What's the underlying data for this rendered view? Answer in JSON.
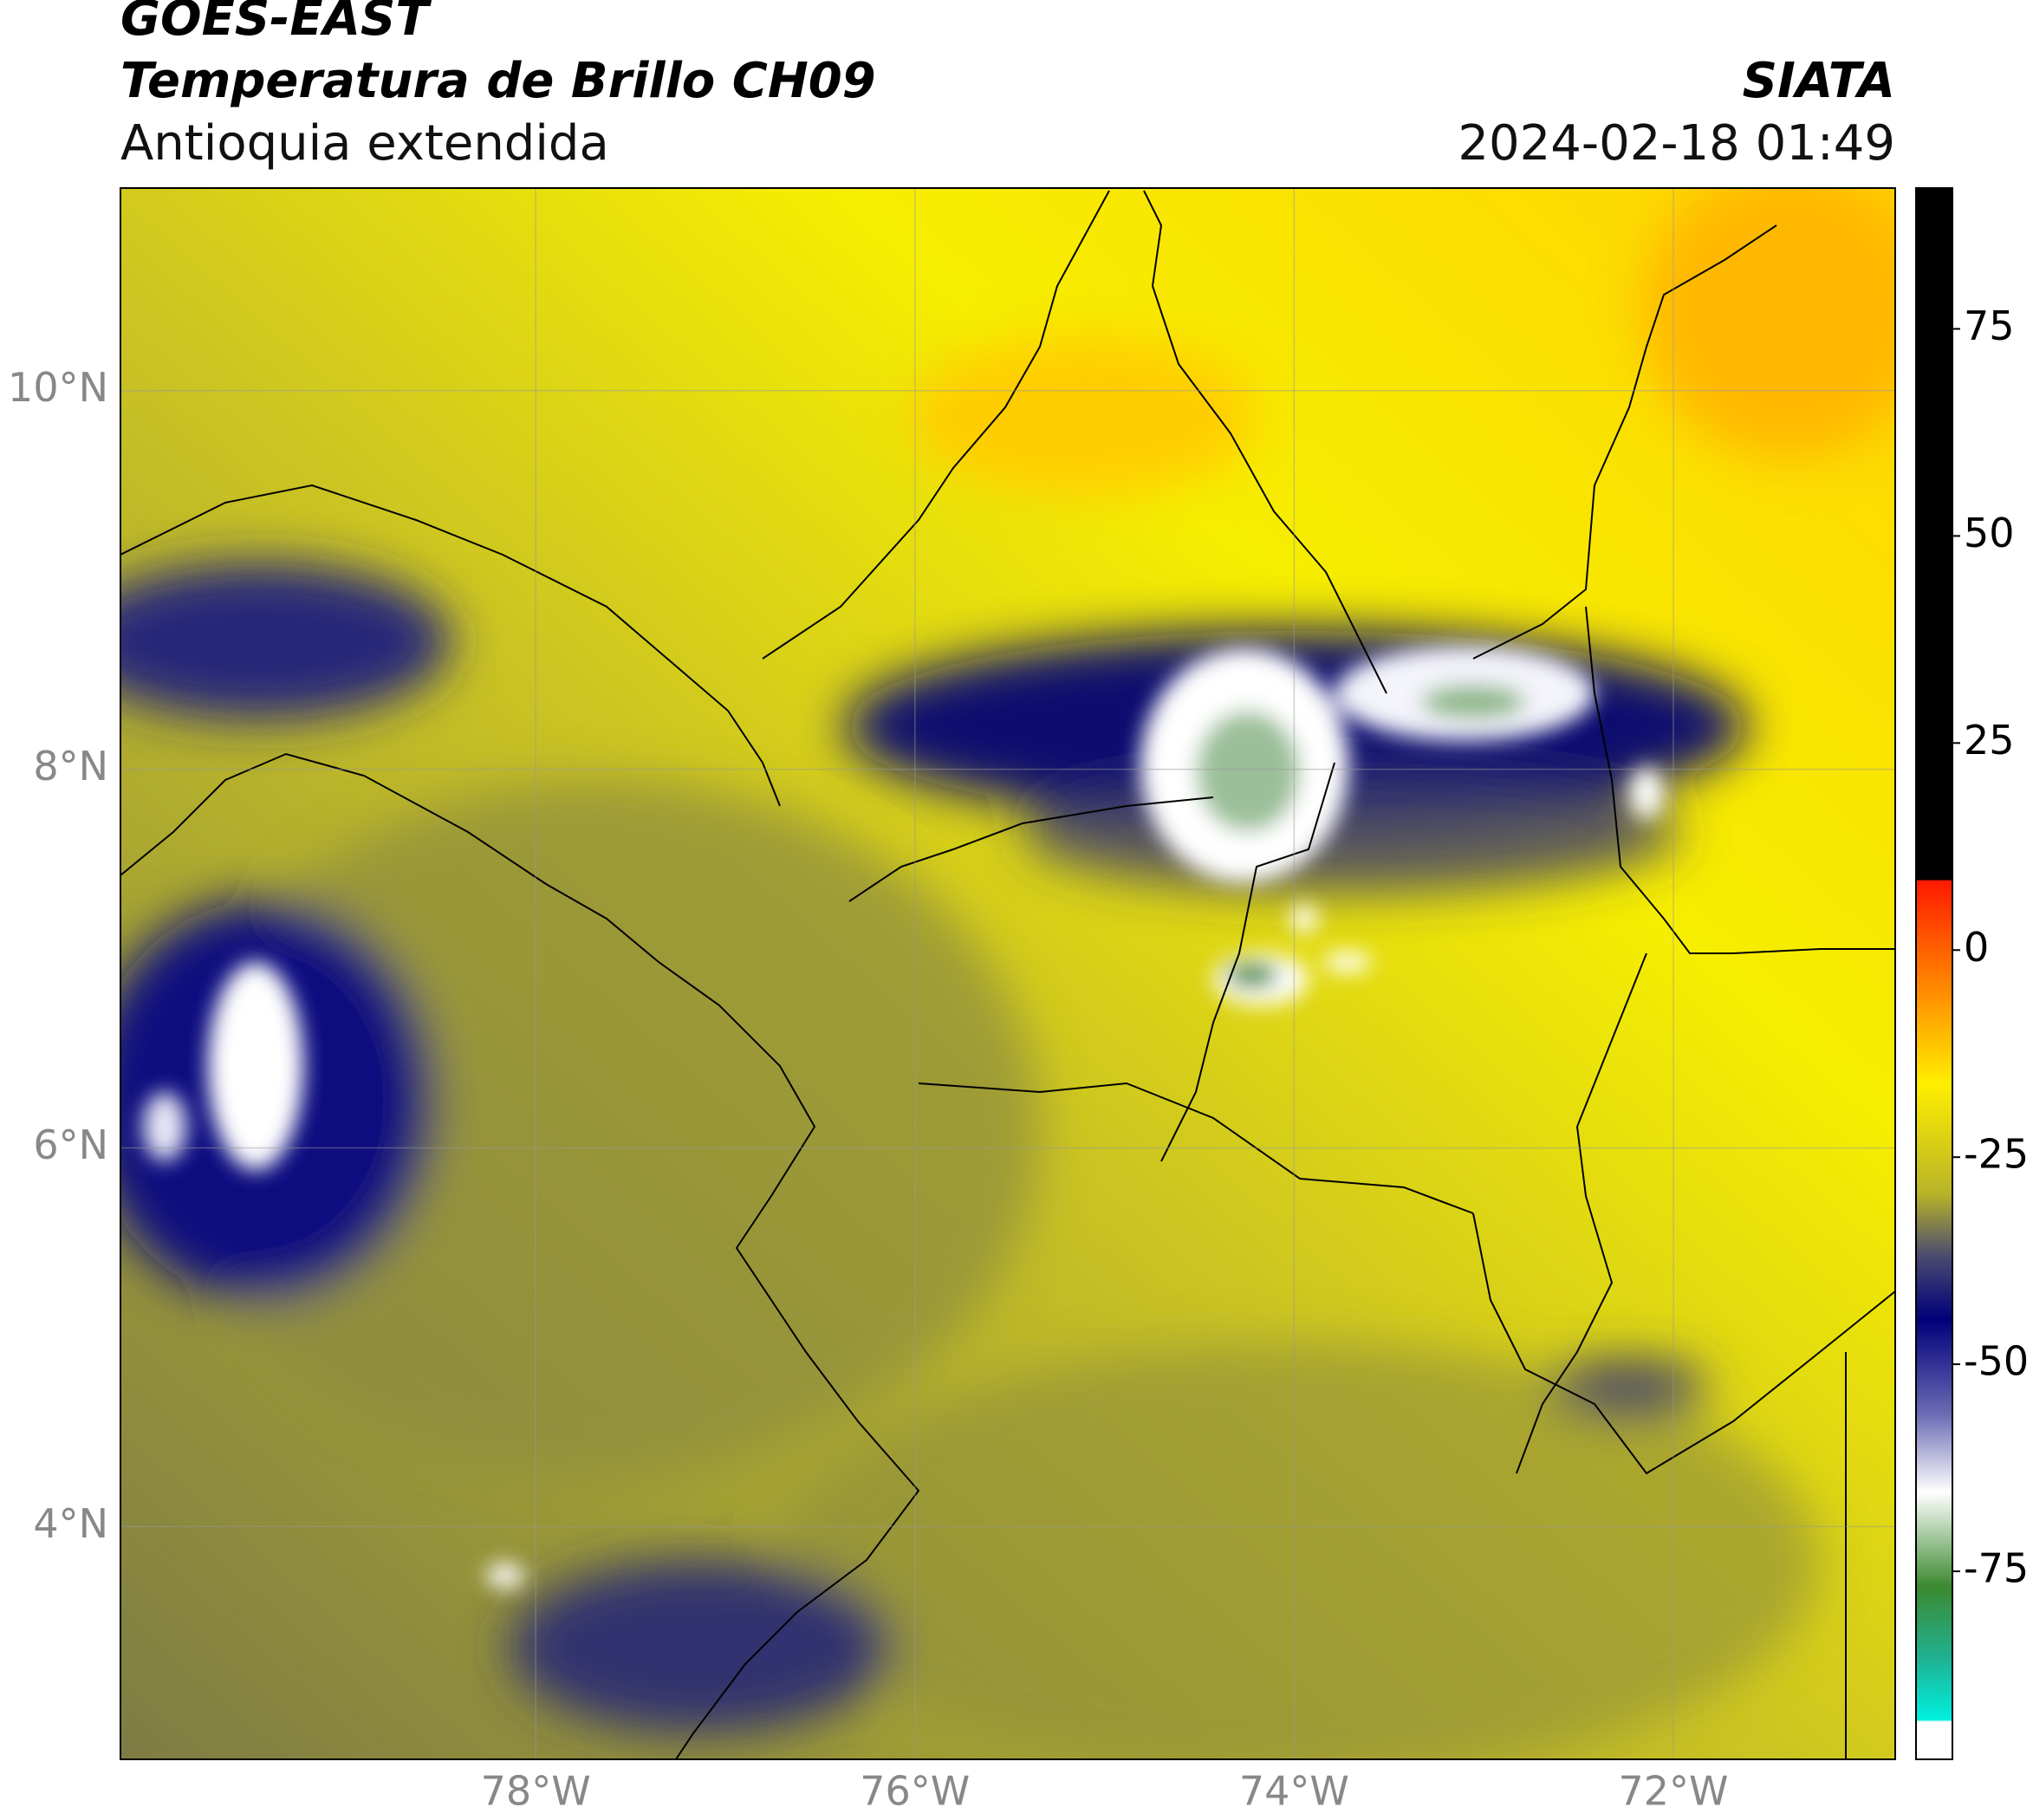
{
  "chart_data": {
    "type": "map",
    "title": "GOES-EAST",
    "subtitle": "Temperatura de Brillo CH09",
    "region": "Antioquia extendida",
    "source": "SIATA",
    "datetime": "2024-02-18 01:49",
    "xlim": [
      -80.19,
      -70.83
    ],
    "ylim": [
      2.77,
      11.07
    ],
    "xticks": [
      {
        "value": -78,
        "label": "78°W"
      },
      {
        "value": -76,
        "label": "76°W"
      },
      {
        "value": -74,
        "label": "74°W"
      },
      {
        "value": -72,
        "label": "72°W"
      }
    ],
    "yticks": [
      {
        "value": 4,
        "label": "4°N"
      },
      {
        "value": 6,
        "label": "6°N"
      },
      {
        "value": 8,
        "label": "8°N"
      },
      {
        "value": 10,
        "label": "10°N"
      }
    ],
    "grid": true,
    "colorbar": {
      "lim": [
        -97.7,
        92
      ],
      "ticks": [
        -75,
        -50,
        -25,
        0,
        25,
        50,
        75
      ]
    }
  }
}
